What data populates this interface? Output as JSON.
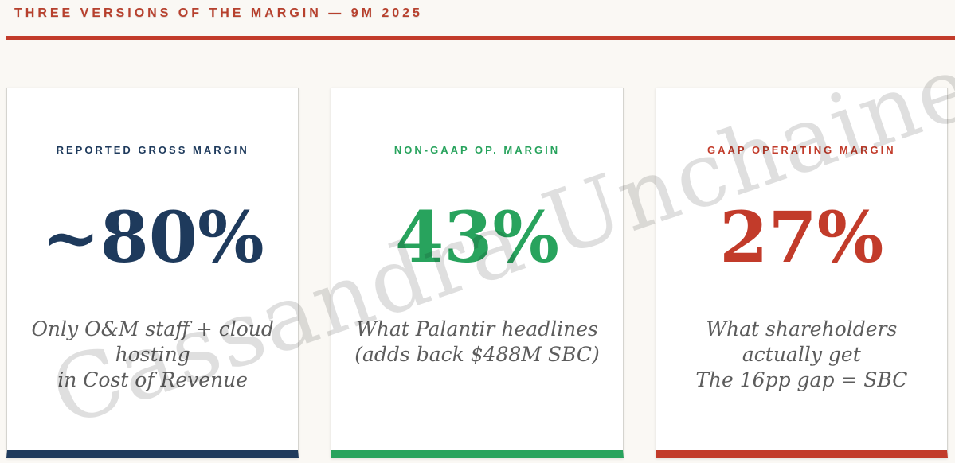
{
  "page": {
    "title": "THREE VERSIONS OF THE MARGIN — 9M 2025",
    "watermark": "Cassandra Unchained"
  },
  "colors": {
    "page_background": "#faf8f4",
    "title_red": "#b7402d",
    "rule_red": "#c23b2a",
    "navy": "#1e3a5c",
    "green": "#28a35d",
    "red": "#c23b2a",
    "description_gray": "#5c5c5c",
    "watermark_gray": "#dfdfdf",
    "card_background": "#ffffff",
    "card_border": "#d5d4cf"
  },
  "cards": [
    {
      "label": "REPORTED GROSS MARGIN",
      "value": "~80%",
      "lines": [
        "Only O&M staff + cloud",
        "hosting",
        "in Cost of Revenue"
      ],
      "accent_color": "#1e3a5c"
    },
    {
      "label": "NON-GAAP OP. MARGIN",
      "value": "43%",
      "lines": [
        "What Palantir headlines",
        "(adds back $488M SBC)"
      ],
      "accent_color": "#28a35d"
    },
    {
      "label": "GAAP OPERATING MARGIN",
      "value": "27%",
      "lines": [
        "What shareholders",
        "actually get",
        "The 16pp gap = SBC"
      ],
      "accent_color": "#c23b2a"
    }
  ],
  "chart_data": {
    "type": "table",
    "title": "THREE VERSIONS OF THE MARGIN — 9M 2025",
    "categories": [
      "Reported Gross Margin",
      "Non-GAAP Op. Margin",
      "GAAP Operating Margin"
    ],
    "values": [
      "~80%",
      "43%",
      "27%"
    ],
    "values_numeric_pct": [
      80,
      43,
      27
    ],
    "notes": [
      "Only O&M staff + cloud hosting in Cost of Revenue",
      "What Palantir headlines (adds back $488M SBC)",
      "What shareholders actually get; The 16pp gap = SBC"
    ]
  }
}
